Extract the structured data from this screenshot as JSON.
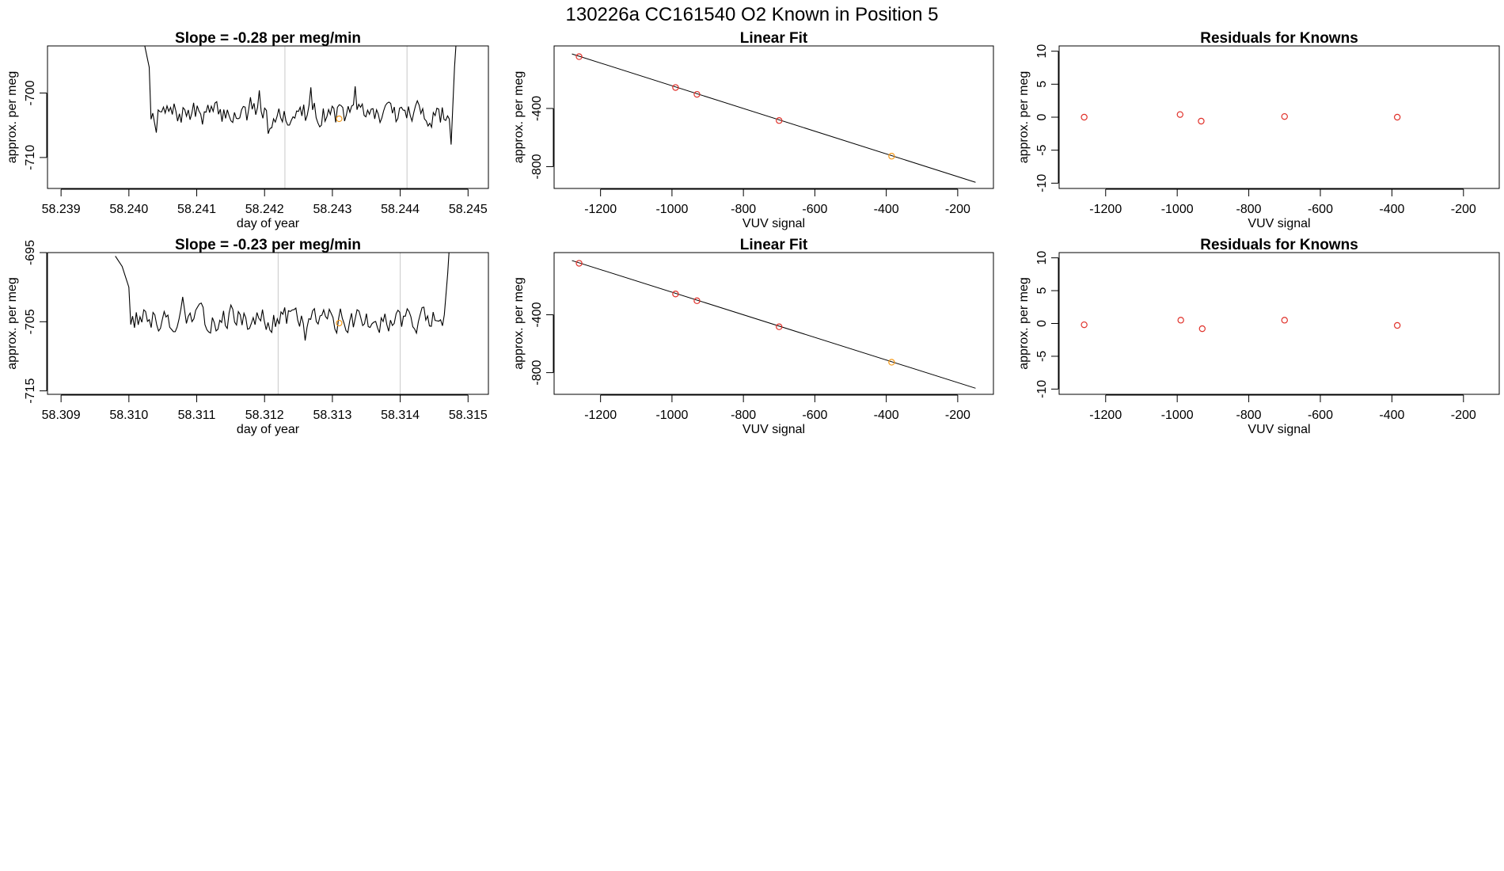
{
  "suptitle": "130226a      CC161540    O2 Known in Position  5",
  "colors": {
    "line": "#000000",
    "marker": "#e0312a",
    "highlight": "#f59a1a",
    "vline": "#c8c8c8",
    "box": "#000000"
  },
  "chart_data": [
    {
      "id": "ts1",
      "type": "line",
      "title": "Slope =  -0.28  per meg/min",
      "xlabel": "day of year",
      "ylabel": "approx. per meg",
      "xlim": [
        58.2388,
        58.2453
      ],
      "ylim": [
        -714.8,
        -692.7
      ],
      "xticks": [
        "58.239",
        "58.240",
        "58.241",
        "58.242",
        "58.243",
        "58.244",
        "58.245"
      ],
      "yticks": [
        "-700",
        "-710"
      ],
      "vlines": [
        58.2423,
        58.2441
      ],
      "series": [
        {
          "start": 58.24,
          "end": 58.2449,
          "base": -703.2,
          "noise": 1.6,
          "seed": 7,
          "head": [
            [
              58.2401,
              -680
            ],
            [
              58.2402,
              -691
            ],
            [
              58.2403,
              -696
            ]
          ],
          "tail": [
            [
              58.24475,
              -708
            ],
            [
              58.2448,
              -696
            ],
            [
              58.2449,
              -680
            ]
          ]
        }
      ],
      "highlight": [
        {
          "x": 58.2431,
          "y": -704.0
        }
      ]
    },
    {
      "id": "fit1",
      "type": "scatter",
      "title": "Linear Fit",
      "xlabel": "VUV signal",
      "ylabel": "approx. per meg",
      "xlim": [
        -1330,
        -100
      ],
      "ylim": [
        -950,
        30
      ],
      "xticks": [
        -1200,
        -1000,
        -800,
        -600,
        -400,
        -200
      ],
      "yticks": [
        -400,
        -800
      ],
      "line": [
        [
          -1280,
          -25
        ],
        [
          -150,
          -908
        ]
      ],
      "points": [
        {
          "x": -1260,
          "y": -44,
          "kind": "known"
        },
        {
          "x": -990,
          "y": -256,
          "kind": "known"
        },
        {
          "x": -930,
          "y": -303,
          "kind": "known"
        },
        {
          "x": -700,
          "y": -483,
          "kind": "known"
        },
        {
          "x": -385,
          "y": -728,
          "kind": "highlight"
        }
      ]
    },
    {
      "id": "res1",
      "type": "scatter",
      "title": "Residuals for Knowns",
      "xlabel": "VUV signal",
      "ylabel": "approx. per meg",
      "xlim": [
        -1330,
        -100
      ],
      "ylim": [
        -10.8,
        10.8
      ],
      "xticks": [
        -1200,
        -1000,
        -800,
        -600,
        -400,
        -200
      ],
      "yticks": [
        10,
        5,
        0,
        -5,
        -10
      ],
      "points": [
        {
          "x": -1260,
          "y": 0.0
        },
        {
          "x": -992,
          "y": 0.4
        },
        {
          "x": -933,
          "y": -0.6
        },
        {
          "x": -700,
          "y": 0.1
        },
        {
          "x": -385,
          "y": 0.0
        }
      ]
    },
    {
      "id": "ts2",
      "type": "line",
      "title": "Slope =  -0.23  per meg/min",
      "xlabel": "day of year",
      "ylabel": "approx. per meg",
      "xlim": [
        58.3088,
        58.3153
      ],
      "ylim": [
        -715.5,
        -695.0
      ],
      "xticks": [
        "58.309",
        "58.310",
        "58.311",
        "58.312",
        "58.313",
        "58.314",
        "58.315"
      ],
      "yticks": [
        "-695",
        "-705",
        "-715"
      ],
      "vlines": [
        58.3122,
        58.314
      ],
      "series": [
        {
          "start": 58.3098,
          "end": 58.3147,
          "base": -704.6,
          "noise": 1.5,
          "seed": 13,
          "head": [
            [
              58.3098,
              -695.5
            ],
            [
              58.3099,
              -697
            ],
            [
              58.31,
              -700
            ]
          ],
          "tail": [
            [
              58.31465,
              -704
            ],
            [
              58.3147,
              -698
            ],
            [
              58.31475,
              -690
            ]
          ]
        }
      ],
      "highlight": [
        {
          "x": 58.3131,
          "y": -705.2
        }
      ]
    },
    {
      "id": "fit2",
      "type": "scatter",
      "title": "Linear Fit",
      "xlabel": "VUV signal",
      "ylabel": "approx. per meg",
      "xlim": [
        -1330,
        -100
      ],
      "ylim": [
        -950,
        30
      ],
      "xticks": [
        -1200,
        -1000,
        -800,
        -600,
        -400,
        -200
      ],
      "yticks": [
        -400,
        -800
      ],
      "line": [
        [
          -1280,
          -25
        ],
        [
          -150,
          -908
        ]
      ],
      "points": [
        {
          "x": -1260,
          "y": -44,
          "kind": "known"
        },
        {
          "x": -990,
          "y": -256,
          "kind": "known"
        },
        {
          "x": -930,
          "y": -303,
          "kind": "known"
        },
        {
          "x": -700,
          "y": -483,
          "kind": "known"
        },
        {
          "x": -385,
          "y": -728,
          "kind": "highlight"
        }
      ]
    },
    {
      "id": "res2",
      "type": "scatter",
      "title": "Residuals for Knowns",
      "xlabel": "VUV signal",
      "ylabel": "approx. per meg",
      "xlim": [
        -1330,
        -100
      ],
      "ylim": [
        -10.8,
        10.8
      ],
      "xticks": [
        -1200,
        -1000,
        -800,
        -600,
        -400,
        -200
      ],
      "yticks": [
        10,
        5,
        0,
        -5,
        -10
      ],
      "points": [
        {
          "x": -1260,
          "y": -0.2
        },
        {
          "x": -990,
          "y": 0.5
        },
        {
          "x": -930,
          "y": -0.8
        },
        {
          "x": -700,
          "y": 0.5
        },
        {
          "x": -385,
          "y": -0.3
        }
      ]
    }
  ]
}
